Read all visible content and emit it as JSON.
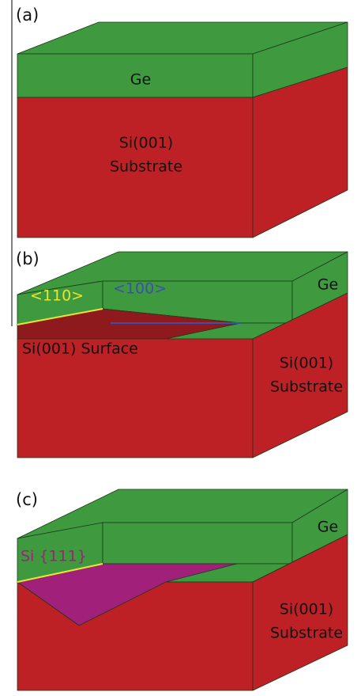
{
  "panels": [
    {
      "label": "(a)",
      "ge": "Ge",
      "substrate": [
        "Si(001)",
        "Substrate"
      ]
    },
    {
      "label": "(b)",
      "ge": "Ge",
      "direction_110": "<110>",
      "direction_100": "<100>",
      "surface": "Si(001) Surface",
      "substrate": [
        "Si(001)",
        "Substrate"
      ]
    },
    {
      "label": "(c)",
      "ge": "Ge",
      "facet": "Si {111}",
      "substrate": [
        "Si(001)",
        "Substrate"
      ]
    }
  ]
}
